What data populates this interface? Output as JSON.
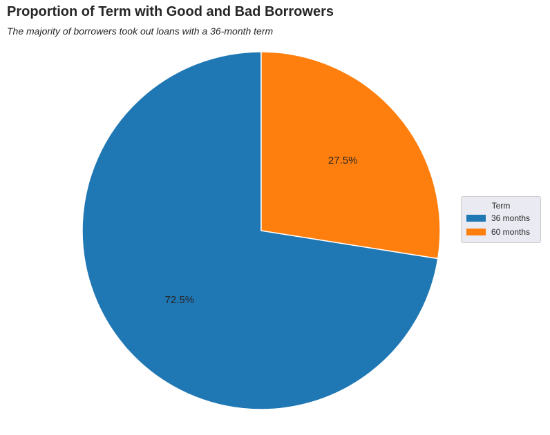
{
  "chart_data": {
    "type": "pie",
    "title": "Proportion of Term with Good and Bad Borrowers",
    "subtitle": "The majority of borrowers took out loans with a 36-month term",
    "legend_title": "Term",
    "legend_position": "center-right",
    "categories": [
      " 36 months",
      " 60 months"
    ],
    "values": [
      72.5,
      27.5
    ],
    "labels": [
      "72.5%",
      "27.5%"
    ],
    "colors": [
      "#1f77b4",
      "#ff7f0e"
    ],
    "start_angle_deg": 90,
    "direction": "counterclockwise"
  }
}
